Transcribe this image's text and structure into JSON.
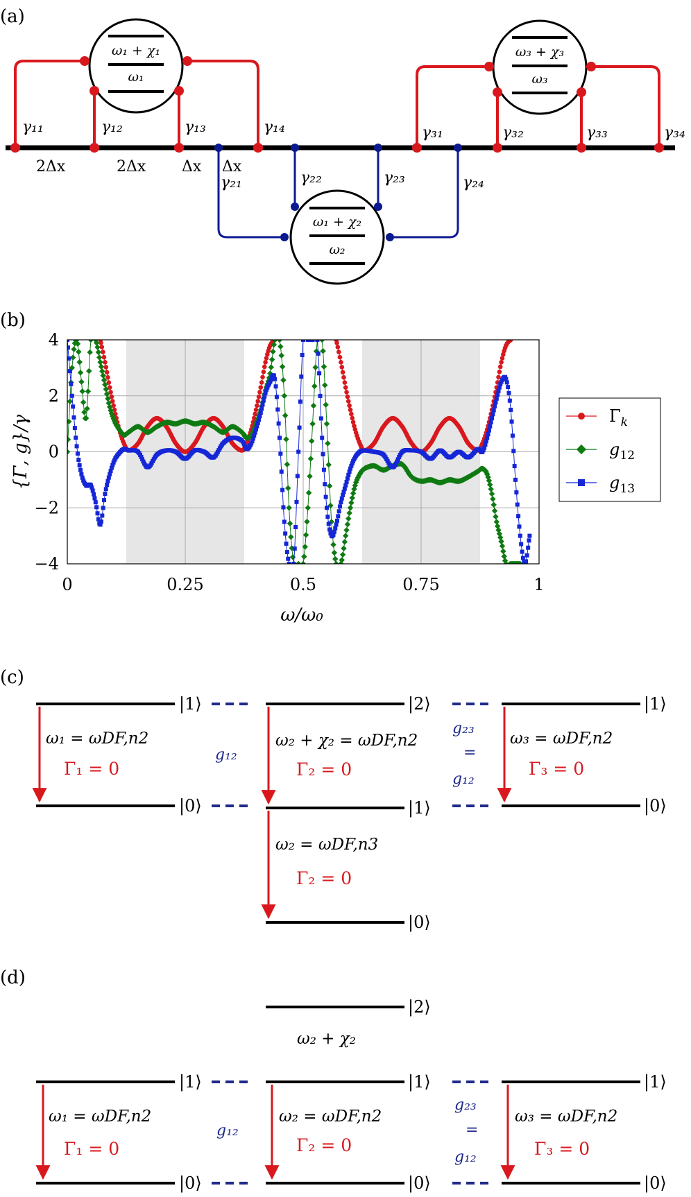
{
  "colors": {
    "red": "#d9181e",
    "blue": "#0b1a8f",
    "navy": "#1f2a8a",
    "green": "#0f7a12",
    "black": "#000000",
    "shade": "#e6e6e6",
    "grid": "#a8a8a8"
  },
  "panel_a": {
    "label": "(a)",
    "atom1": {
      "top": "ω₁ + χ₁",
      "bottom": "ω₁"
    },
    "atom2": {
      "top": "ω₁ + χ₂",
      "bottom": "ω₂"
    },
    "atom3": {
      "top": "ω₃ + χ₃",
      "bottom": "ω₃"
    },
    "gammas": [
      "γ₁₁",
      "γ₁₂",
      "γ₁₃",
      "γ₁₄",
      "γ₂₁",
      "γ₂₂",
      "γ₂₃",
      "γ₂₄",
      "γ₃₁",
      "γ₃₂",
      "γ₃₃",
      "γ₃₄"
    ],
    "spacings": [
      "2Δx",
      "2Δx",
      "Δx",
      "Δx"
    ]
  },
  "panel_b": {
    "label": "(b)"
  },
  "chart_data": {
    "type": "line",
    "title": "",
    "xlabel": "ω/ω₀",
    "ylabel": "{Γ, g}/γ",
    "xlim": [
      0,
      1
    ],
    "ylim": [
      -4,
      4
    ],
    "xticks": [
      0,
      0.25,
      0.5,
      0.75,
      1
    ],
    "xtick_labels": [
      "0",
      "0.25",
      "0.5",
      "0.75",
      "1"
    ],
    "yticks": [
      -4,
      -2,
      0,
      2,
      4
    ],
    "ytick_labels": [
      "−4",
      "−2",
      "0",
      "2",
      "4"
    ],
    "grid": true,
    "shaded_regions": [
      [
        0.125,
        0.375
      ],
      [
        0.625,
        0.875
      ]
    ],
    "legend_position": "right",
    "series": [
      {
        "name": "Γk",
        "legend_main": "Γ",
        "legend_sub": "k",
        "color": "#d9181e",
        "marker": "circle",
        "x": [
          0.07,
          0.08,
          0.09,
          0.1,
          0.11,
          0.12,
          0.13,
          0.15,
          0.17,
          0.19,
          0.21,
          0.23,
          0.25,
          0.27,
          0.29,
          0.31,
          0.33,
          0.35,
          0.37,
          0.38,
          0.39,
          0.4,
          0.41,
          0.42,
          0.43,
          0.44
        ],
        "values": [
          4.0,
          3.2,
          2.3,
          1.5,
          0.8,
          0.3,
          0.05,
          0.3,
          0.9,
          1.2,
          0.9,
          0.3,
          0.0,
          0.3,
          0.9,
          1.2,
          0.9,
          0.3,
          0.05,
          0.3,
          0.8,
          1.5,
          2.3,
          3.2,
          3.8,
          4.0
        ]
      },
      {
        "name": "Γk",
        "color": "#d9181e",
        "marker": "circle",
        "x": [
          0.57,
          0.58,
          0.59,
          0.6,
          0.61,
          0.62,
          0.63,
          0.65,
          0.67,
          0.69,
          0.71,
          0.73,
          0.75,
          0.77,
          0.79,
          0.81,
          0.83,
          0.85,
          0.87,
          0.88,
          0.89,
          0.9,
          0.91,
          0.92,
          0.93,
          0.94
        ],
        "values": [
          4.0,
          3.2,
          2.3,
          1.5,
          0.8,
          0.3,
          0.05,
          0.3,
          0.9,
          1.2,
          0.9,
          0.3,
          0.0,
          0.3,
          0.9,
          1.2,
          0.9,
          0.3,
          0.05,
          0.3,
          0.8,
          1.5,
          2.3,
          3.2,
          3.8,
          4.0
        ]
      },
      {
        "name": "g12",
        "legend_main": "g",
        "legend_sub": "12",
        "color": "#0f7a12",
        "marker": "diamond",
        "x": [
          0.0,
          0.01,
          0.02,
          0.03,
          0.04,
          0.05,
          0.06,
          0.07,
          0.08,
          0.09,
          0.1,
          0.11,
          0.12,
          0.13,
          0.15,
          0.17,
          0.19,
          0.21,
          0.23,
          0.25,
          0.27,
          0.29,
          0.31,
          0.33,
          0.35,
          0.37,
          0.38,
          0.39,
          0.4,
          0.41,
          0.42,
          0.43,
          0.44,
          0.45,
          0.46,
          0.47,
          0.48,
          0.49,
          0.5,
          0.51,
          0.52,
          0.53,
          0.54,
          0.55,
          0.56,
          0.57,
          0.58,
          0.59,
          0.6,
          0.61,
          0.62,
          0.63,
          0.65,
          0.67,
          0.69,
          0.71,
          0.73,
          0.75,
          0.77,
          0.79,
          0.81,
          0.83,
          0.85,
          0.87,
          0.88,
          0.89,
          0.9,
          0.91,
          0.92,
          0.93,
          0.94,
          0.95,
          0.96
        ],
        "values": [
          0.0,
          3.0,
          4.0,
          2.5,
          1.2,
          4.0,
          4.0,
          3.2,
          2.4,
          1.6,
          1.1,
          0.8,
          0.6,
          0.7,
          0.9,
          0.7,
          0.9,
          1.05,
          1.0,
          1.1,
          1.0,
          1.05,
          0.9,
          0.7,
          0.9,
          0.7,
          0.5,
          0.6,
          1.0,
          1.5,
          2.2,
          2.8,
          4.0,
          4.0,
          2.0,
          -2.0,
          -4.0,
          -4.0,
          -4.0,
          -2.0,
          1.0,
          4.0,
          4.0,
          1.0,
          -2.5,
          -4.0,
          -4.0,
          -3.0,
          -2.0,
          -1.2,
          -0.8,
          -0.6,
          -0.5,
          -0.65,
          -0.5,
          -0.45,
          -0.9,
          -1.05,
          -1.0,
          -1.1,
          -1.0,
          -1.05,
          -0.9,
          -0.7,
          -0.6,
          -0.8,
          -1.5,
          -2.5,
          -3.2,
          -4.0,
          -4.0,
          -4.0,
          -4.0
        ]
      },
      {
        "name": "g13",
        "legend_main": "g",
        "legend_sub": "13",
        "color": "#1426d6",
        "marker": "square",
        "x": [
          0.0,
          0.01,
          0.02,
          0.03,
          0.04,
          0.05,
          0.06,
          0.07,
          0.08,
          0.09,
          0.1,
          0.11,
          0.12,
          0.13,
          0.15,
          0.17,
          0.19,
          0.21,
          0.23,
          0.25,
          0.27,
          0.29,
          0.31,
          0.33,
          0.35,
          0.37,
          0.38,
          0.39,
          0.4,
          0.41,
          0.42,
          0.43,
          0.44,
          0.45,
          0.46,
          0.47,
          0.48,
          0.49,
          0.5,
          0.51,
          0.52,
          0.53,
          0.54,
          0.55,
          0.56,
          0.57,
          0.58,
          0.59,
          0.6,
          0.61,
          0.62,
          0.63,
          0.65,
          0.67,
          0.69,
          0.71,
          0.73,
          0.75,
          0.77,
          0.79,
          0.81,
          0.83,
          0.85,
          0.87,
          0.88,
          0.89,
          0.9,
          0.91,
          0.92,
          0.93,
          0.94,
          0.95,
          0.96,
          0.97,
          0.98
        ],
        "values": [
          4.0,
          2.0,
          0.2,
          -0.8,
          -1.2,
          -1.2,
          -1.8,
          -2.6,
          -1.5,
          -0.8,
          -0.3,
          -0.05,
          0.1,
          0.05,
          0.0,
          -0.55,
          -0.1,
          0.05,
          0.0,
          -0.25,
          0.05,
          0.0,
          -0.2,
          0.3,
          0.5,
          0.4,
          0.1,
          0.3,
          0.8,
          1.4,
          2.1,
          2.5,
          2.6,
          0.5,
          -2.5,
          -4.0,
          -4.0,
          0.0,
          4.0,
          4.0,
          4.0,
          4.0,
          0.5,
          -2.0,
          -3.0,
          -2.6,
          -1.8,
          -1.2,
          -0.6,
          -0.2,
          0.0,
          0.05,
          0.0,
          -0.1,
          -0.55,
          0.0,
          0.05,
          0.0,
          -0.25,
          0.05,
          -0.2,
          0.0,
          -0.2,
          0.1,
          0.0,
          0.5,
          1.2,
          1.9,
          2.5,
          2.6,
          1.5,
          -1.0,
          -3.0,
          -4.0,
          -3.0
        ]
      }
    ]
  },
  "panel_c": {
    "label": "(c)",
    "kets": [
      "|1⟩",
      "|0⟩",
      "|2⟩",
      "|1⟩",
      "|0⟩",
      "|1⟩",
      "|0⟩"
    ],
    "eq1": "ω₁ = ωDF,n2",
    "gam1": "Γ₁ = 0",
    "eq2a": "ω₂ + χ₂ = ωDF,n2",
    "gam2a": "Γ₂ = 0",
    "eq2b": "ω₂ = ωDF,n3",
    "gam2b": "Γ₂ = 0",
    "eq3": "ω₃ = ωDF,n2",
    "gam3": "Γ₃ = 0",
    "g12": "g₁₂",
    "g23_top": "g₂₃",
    "eqsign": "=",
    "g23_bot": "g₁₂"
  },
  "panel_d": {
    "label": "(d)",
    "kets": [
      "|2⟩",
      "|1⟩",
      "|0⟩",
      "|1⟩",
      "|0⟩",
      "|1⟩",
      "|0⟩"
    ],
    "chi": "ω₂ + χ₂",
    "eq1": "ω₁ = ωDF,n2",
    "gam1": "Γ₁ = 0",
    "eq2": "ω₂ = ωDF,n2",
    "gam2": "Γ₂ = 0",
    "eq3": "ω₃ = ωDF,n2",
    "gam3": "Γ₃ = 0",
    "g12": "g₁₂",
    "g23_top": "g₂₃",
    "eqsign": "=",
    "g23_bot": "g₁₂"
  }
}
